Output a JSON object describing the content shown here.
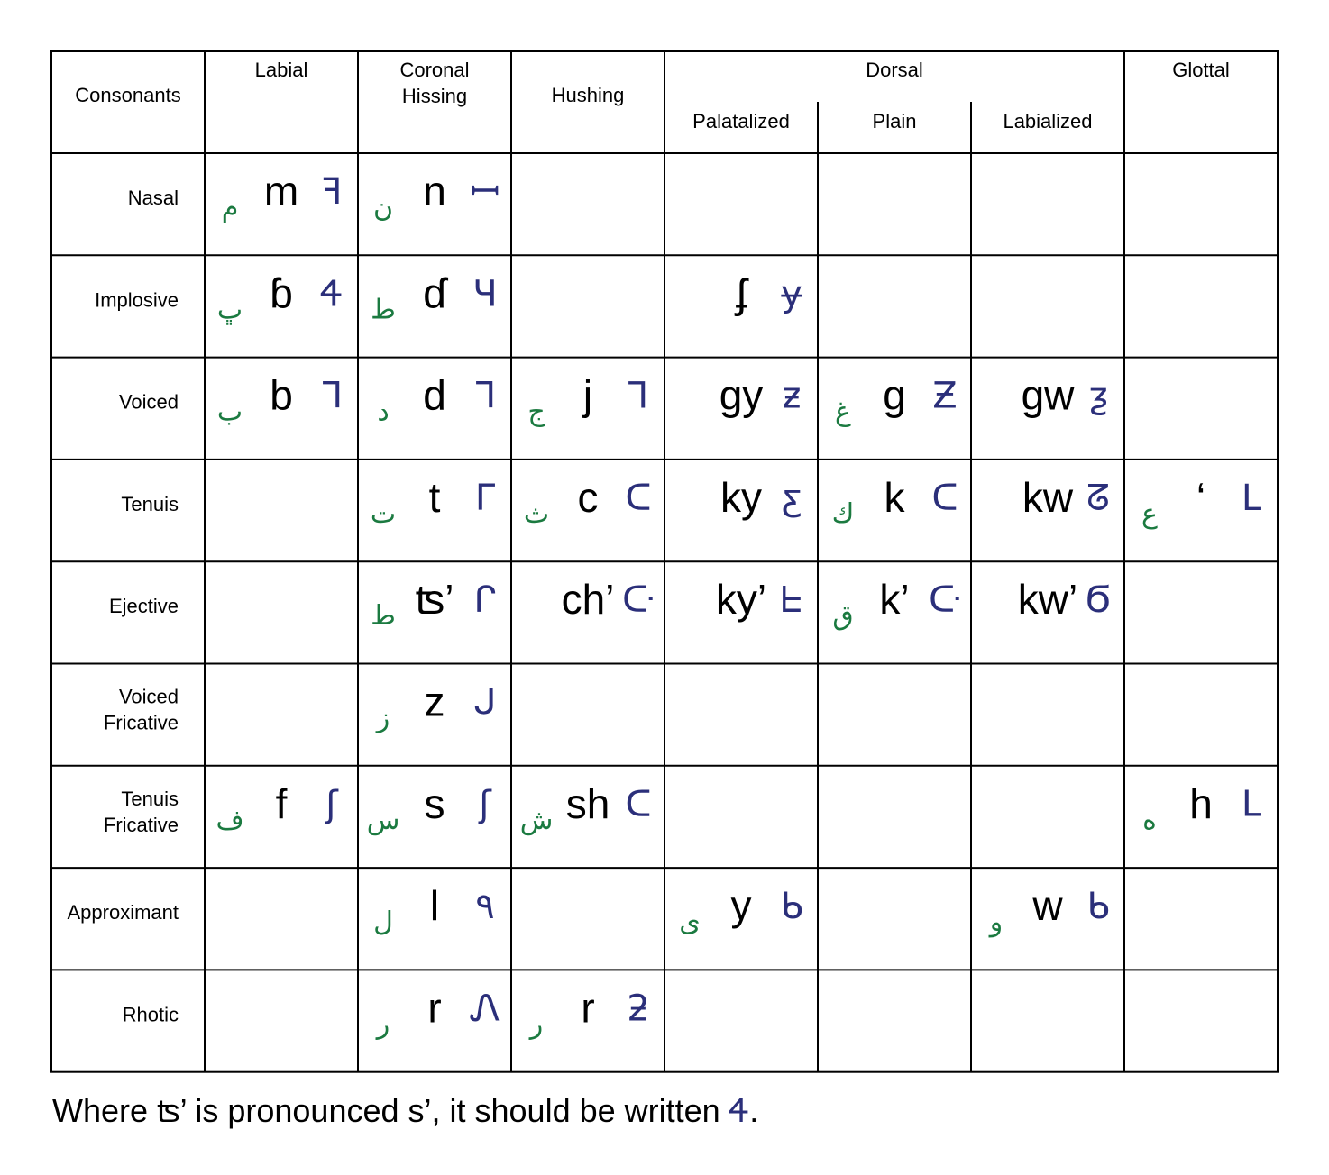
{
  "table": {
    "corner_label": "Consonants",
    "columns": [
      {
        "id": "labial",
        "label": "Labial"
      },
      {
        "id": "coronal",
        "label": "Coronal\nHissing"
      },
      {
        "id": "hushing",
        "label": "Hushing"
      },
      {
        "id": "dorsal",
        "label": "Dorsal",
        "sub": [
          "Palatalized",
          "Plain",
          "Labialized"
        ]
      },
      {
        "id": "glottal",
        "label": "Glottal"
      }
    ],
    "rows": [
      {
        "label": "Nasal",
        "cells": [
          {
            "col": 0,
            "arabic": "م",
            "latin": "m",
            "native": "ꟻ"
          },
          {
            "col": 1,
            "arabic": "ن",
            "latin": "n",
            "native": "ꟷ"
          }
        ]
      },
      {
        "label": "Implosive",
        "cells": [
          {
            "col": 0,
            "arabic": "ڀ",
            "latin": "ɓ",
            "native": "Ꮞ"
          },
          {
            "col": 1,
            "arabic": "ط",
            "latin": "ɗ",
            "native": "Ч"
          },
          {
            "col": 3,
            "arabic": "",
            "latin": "ʄ",
            "native": "ɏ"
          }
        ]
      },
      {
        "label": "Voiced",
        "cells": [
          {
            "col": 0,
            "arabic": "ب",
            "latin": "b",
            "native": "ᒣ"
          },
          {
            "col": 1,
            "arabic": "د",
            "latin": "d",
            "native": "ᒣ"
          },
          {
            "col": 2,
            "arabic": "ج",
            "latin": "j",
            "native": "Ꞁ"
          },
          {
            "col": 3,
            "arabic": "",
            "latin": "gy",
            "native": "ƶ"
          },
          {
            "col": 4,
            "arabic": "غ",
            "latin": "g",
            "native": "Ƶ"
          },
          {
            "col": 5,
            "arabic": "",
            "latin": "gw",
            "native": "ƺ"
          }
        ]
      },
      {
        "label": "Tenuis",
        "cells": [
          {
            "col": 1,
            "arabic": "ت",
            "latin": "t",
            "native": "ᒥ"
          },
          {
            "col": 2,
            "arabic": "ث",
            "latin": "c",
            "native": "ᑕ"
          },
          {
            "col": 3,
            "arabic": "",
            "latin": "ky",
            "native": "ƹ"
          },
          {
            "col": 4,
            "arabic": "ك",
            "latin": "k",
            "native": "ᑕ"
          },
          {
            "col": 5,
            "arabic": "",
            "latin": "kw",
            "native": "ᘔ"
          },
          {
            "col": 6,
            "arabic": "ع",
            "latin": "‘",
            "native": "L"
          }
        ]
      },
      {
        "label": "Ejective",
        "cells": [
          {
            "col": 1,
            "arabic": "ط",
            "latin": "ʦ’",
            "native": "ᒋ"
          },
          {
            "col": 2,
            "arabic": "",
            "latin": "ch’",
            "native": "ᑢ"
          },
          {
            "col": 3,
            "arabic": "",
            "latin": "ky’",
            "native": "ᖶ"
          },
          {
            "col": 4,
            "arabic": "ق",
            "latin": "k’",
            "native": "ᑢ"
          },
          {
            "col": 5,
            "arabic": "",
            "latin": "kw’",
            "native": "Ϭ"
          }
        ]
      },
      {
        "label": "Voiced\nFricative",
        "cells": [
          {
            "col": 1,
            "arabic": "ز",
            "latin": "z",
            "native": "ᒍ"
          }
        ]
      },
      {
        "label": "Tenuis\nFricative",
        "cells": [
          {
            "col": 0,
            "arabic": "ف",
            "latin": "f",
            "native": "ʃ"
          },
          {
            "col": 1,
            "arabic": "س",
            "latin": "s",
            "native": "ʃ"
          },
          {
            "col": 2,
            "arabic": "ش",
            "latin": "sh",
            "native": "ᑕ"
          },
          {
            "col": 6,
            "arabic": "ه",
            "latin": "h",
            "native": "ᒪ"
          }
        ]
      },
      {
        "label": "Approximant",
        "cells": [
          {
            "col": 1,
            "arabic": "ل",
            "latin": "l",
            "native": "٩"
          },
          {
            "col": 3,
            "arabic": "ى",
            "latin": "y",
            "native": "ᑲ"
          },
          {
            "col": 5,
            "arabic": "و",
            "latin": "w",
            "native": "ᑲ"
          }
        ]
      },
      {
        "label": "Rhotic",
        "cells": [
          {
            "col": 1,
            "arabic": "ر",
            "latin": "r",
            "native": "Ꮑ"
          },
          {
            "col": 2,
            "arabic": "ر",
            "latin": "r",
            "native": "ƻ"
          }
        ]
      }
    ],
    "colors": {
      "arabic": "#1b7a40",
      "native": "#2b2f7a",
      "grid": "#000000"
    }
  },
  "footnote": {
    "text": "Where ʦ’ is pronounced s’, it should be written ",
    "glyph": "Ꮞ",
    "end": "."
  }
}
